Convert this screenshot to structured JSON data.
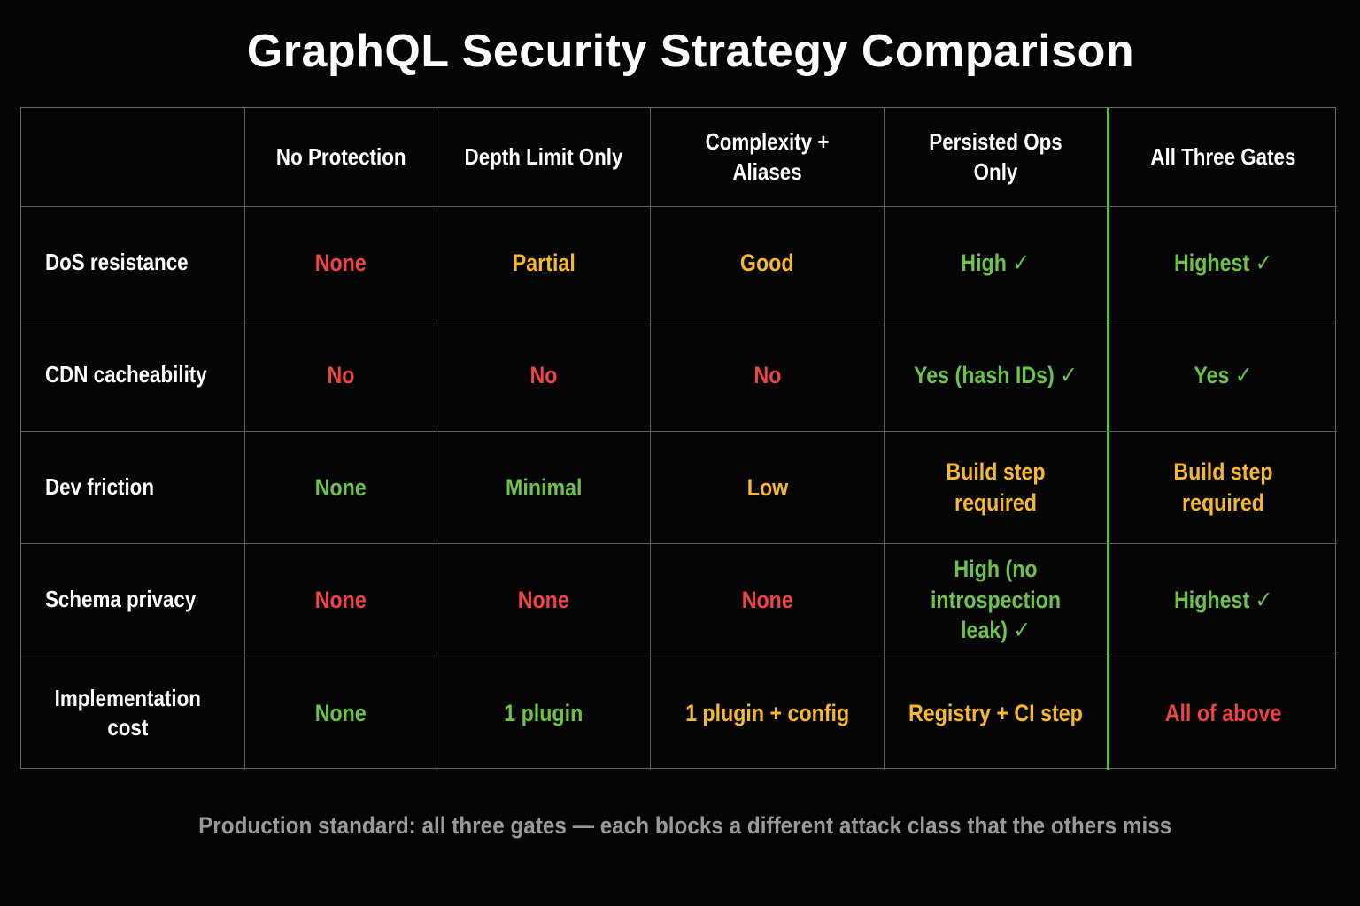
{
  "title": "GraphQL Security Strategy Comparison",
  "colors": {
    "red": "#ef4444",
    "amber": "#f5b82e",
    "green": "#6cc24a",
    "highlight_border": "#5bbf3a"
  },
  "table": {
    "header_corner": "",
    "columns": [
      "No Protection",
      "Depth Limit Only",
      "Complexity + Aliases",
      "Persisted Ops Only",
      "All Three Gates"
    ],
    "rows": [
      {
        "label": "DoS resistance",
        "cells": [
          {
            "text": "None",
            "color": "red"
          },
          {
            "text": "Partial",
            "color": "amber"
          },
          {
            "text": "Good",
            "color": "amber"
          },
          {
            "text": "High ✓",
            "color": "green"
          },
          {
            "text": "Highest ✓",
            "color": "green"
          }
        ]
      },
      {
        "label": "CDN cacheability",
        "cells": [
          {
            "text": "No",
            "color": "red"
          },
          {
            "text": "No",
            "color": "red"
          },
          {
            "text": "No",
            "color": "red"
          },
          {
            "text": "Yes (hash IDs) ✓",
            "color": "green"
          },
          {
            "text": "Yes ✓",
            "color": "green"
          }
        ]
      },
      {
        "label": "Dev friction",
        "cells": [
          {
            "text": "None",
            "color": "green"
          },
          {
            "text": "Minimal",
            "color": "green"
          },
          {
            "text": "Low",
            "color": "amber"
          },
          {
            "text": "Build step required",
            "color": "amber"
          },
          {
            "text": "Build step required",
            "color": "amber"
          }
        ]
      },
      {
        "label": "Schema privacy",
        "cells": [
          {
            "text": "None",
            "color": "red"
          },
          {
            "text": "None",
            "color": "red"
          },
          {
            "text": "None",
            "color": "red"
          },
          {
            "text": "High (no introspection leak) ✓",
            "color": "green"
          },
          {
            "text": "Highest ✓",
            "color": "green"
          }
        ]
      },
      {
        "label": "Implementation cost",
        "cells": [
          {
            "text": "None",
            "color": "green"
          },
          {
            "text": "1 plugin",
            "color": "green"
          },
          {
            "text": "1 plugin + config",
            "color": "amber"
          },
          {
            "text": "Registry + CI step",
            "color": "amber"
          },
          {
            "text": "All of above",
            "color": "red"
          }
        ]
      }
    ]
  },
  "footer": "Production standard: all three gates — each blocks a different attack class that the others miss"
}
